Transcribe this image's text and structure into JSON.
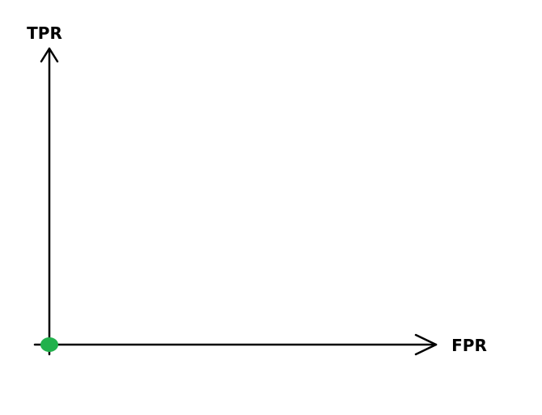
{
  "chart_data": {
    "type": "scatter",
    "title": "",
    "xlabel": "FPR",
    "ylabel": "TPR",
    "xlim": [
      0,
      1
    ],
    "ylim": [
      0,
      1
    ],
    "grid": false,
    "ticks": "none",
    "axes_style": "arrows",
    "series": [
      {
        "x": [
          0
        ],
        "y": [
          0
        ],
        "color": "#22b14c"
      }
    ]
  }
}
